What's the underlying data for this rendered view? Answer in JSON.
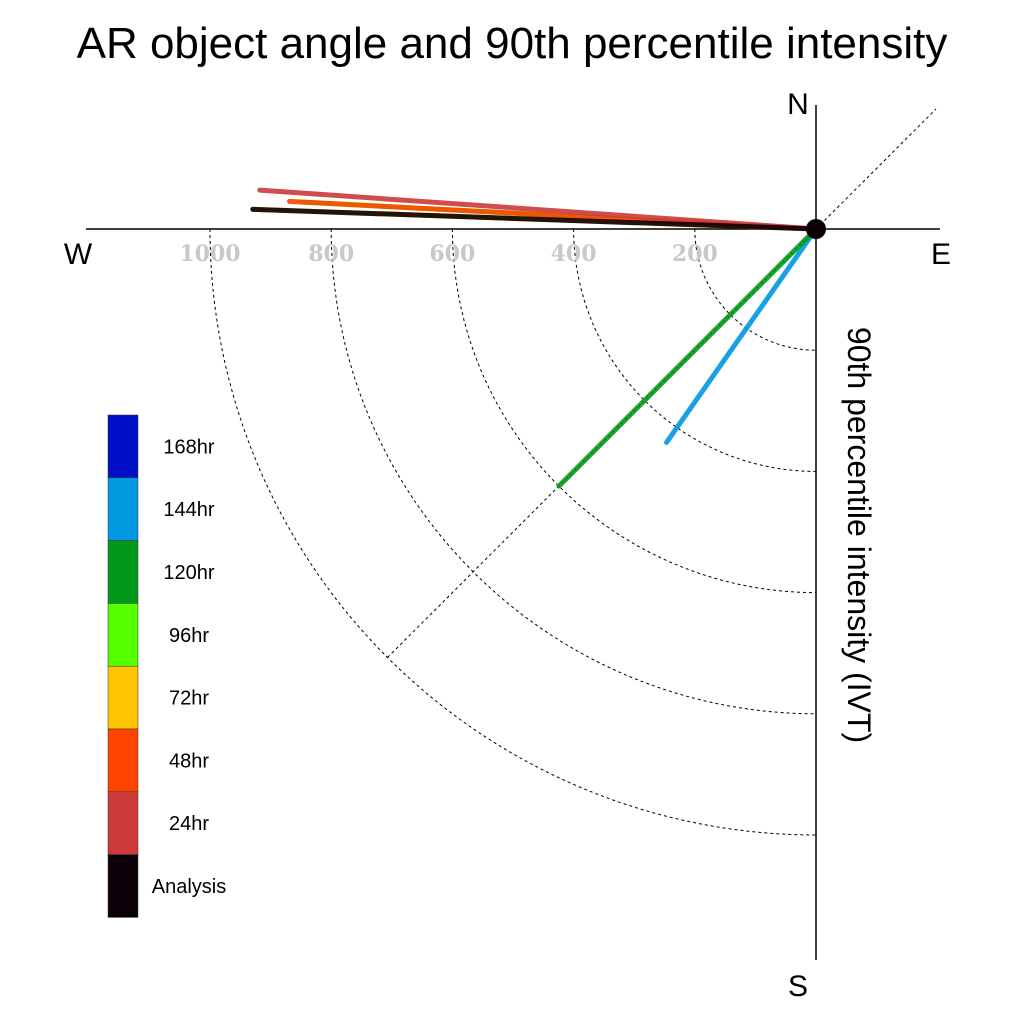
{
  "chart_data": {
    "type": "polar-vector",
    "title": "AR object angle and 90th percentile intensity",
    "radial_label": "90th percentile intensity (IVT)",
    "compass": {
      "north": "N",
      "east": "E",
      "south": "S",
      "west": "W"
    },
    "radial_ticks": [
      1000,
      800,
      600,
      400,
      200
    ],
    "radial_max": 1000,
    "grid": true,
    "legend_position": "left",
    "series": [
      {
        "name": "168hr",
        "color": "#0010c8",
        "vectors": []
      },
      {
        "name": "144hr",
        "color": "#0099e0",
        "vectors": [
          {
            "angle_deg": 215,
            "intensity": 430
          }
        ]
      },
      {
        "name": "120hr",
        "color": "#00991a",
        "vectors": [
          {
            "angle_deg": 225,
            "intensity": 600
          }
        ]
      },
      {
        "name": "96hr",
        "color": "#55ff00",
        "vectors": [
          {
            "angle_deg": 273,
            "intensity": 850
          }
        ]
      },
      {
        "name": "72hr",
        "color": "#ffc500",
        "vectors": [
          {
            "angle_deg": 272,
            "intensity": 930
          }
        ]
      },
      {
        "name": "48hr",
        "color": "#ff4400",
        "vectors": [
          {
            "angle_deg": 273,
            "intensity": 870
          }
        ]
      },
      {
        "name": "24hr",
        "color": "#cc3a3a",
        "vectors": [
          {
            "angle_deg": 274,
            "intensity": 920
          }
        ]
      },
      {
        "name": "Analysis",
        "color": "#0c0008",
        "vectors": [
          {
            "angle_deg": 272,
            "intensity": 930
          }
        ]
      }
    ]
  }
}
